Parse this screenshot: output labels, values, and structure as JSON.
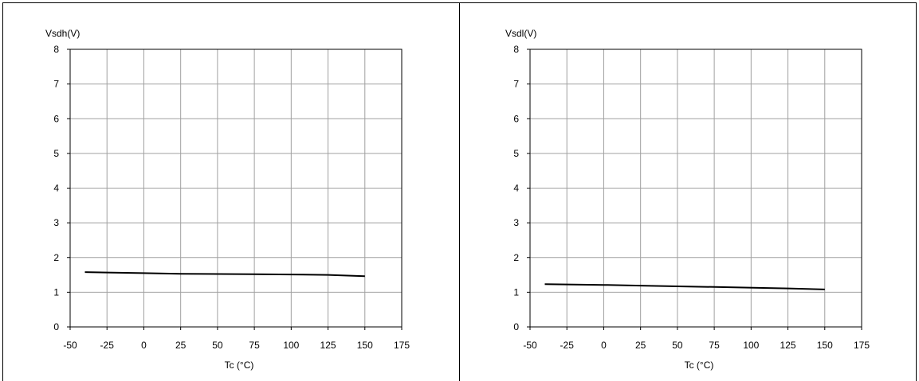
{
  "chart_data": [
    {
      "type": "line",
      "title": "",
      "ylabel": "Vsdh(V)",
      "xlabel": "Tc (°C)",
      "xlim": [
        -50,
        175
      ],
      "ylim": [
        0,
        8
      ],
      "xticks": [
        -50,
        -25,
        0,
        25,
        50,
        75,
        100,
        125,
        150,
        175
      ],
      "yticks": [
        0,
        1,
        2,
        3,
        4,
        5,
        6,
        7,
        8
      ],
      "grid": true,
      "series": [
        {
          "x": [
            -40,
            0,
            25,
            75,
            125,
            150
          ],
          "y": [
            1.58,
            1.55,
            1.53,
            1.52,
            1.5,
            1.46
          ]
        }
      ]
    },
    {
      "type": "line",
      "title": "",
      "ylabel": "Vsdl(V)",
      "xlabel": "Tc (°C)",
      "xlim": [
        -50,
        175
      ],
      "ylim": [
        0,
        8
      ],
      "xticks": [
        -50,
        -25,
        0,
        25,
        50,
        75,
        100,
        125,
        150,
        175
      ],
      "yticks": [
        0,
        1,
        2,
        3,
        4,
        5,
        6,
        7,
        8
      ],
      "grid": true,
      "series": [
        {
          "x": [
            -40,
            0,
            25,
            75,
            125,
            150
          ],
          "y": [
            1.23,
            1.21,
            1.19,
            1.15,
            1.11,
            1.08
          ]
        }
      ]
    }
  ]
}
